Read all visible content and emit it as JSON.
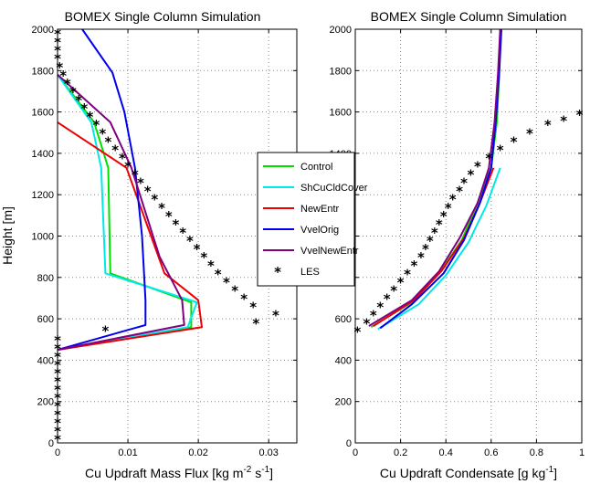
{
  "chart_data": [
    {
      "type": "line",
      "title": "BOMEX Single Column Simulation",
      "xlabel_parts": [
        "Cu Updraft Mass Flux [kg m",
        "-2",
        " s",
        "-1",
        "]"
      ],
      "ylabel": "Height [m]",
      "xlim": [
        0,
        0.034
      ],
      "ylim": [
        0,
        2000
      ],
      "xticks": [
        0,
        0.01,
        0.02,
        0.03
      ],
      "xtick_labels": [
        "0",
        "0.01",
        "0.02",
        "0.03"
      ],
      "yticks": [
        0,
        200,
        400,
        600,
        800,
        1000,
        1200,
        1400,
        1600,
        1800,
        2000
      ],
      "ytick_labels": [
        "0",
        "200",
        "400",
        "600",
        "800",
        "1000",
        "1200",
        "1400",
        "1600",
        "1800",
        "2000"
      ],
      "grid": true,
      "series": [
        {
          "name": "Control",
          "color": "#00e000",
          "points": [
            [
              0,
              450
            ],
            [
              0.019,
              560
            ],
            [
              0.019,
              680
            ],
            [
              0.0075,
              820
            ],
            [
              0.0072,
              1330
            ],
            [
              0.0052,
              1550
            ],
            [
              0,
              1780
            ]
          ]
        },
        {
          "name": "ShCuCldCover",
          "color": "#00e8e8",
          "points": [
            [
              0,
              450
            ],
            [
              0.0185,
              560
            ],
            [
              0.0198,
              680
            ],
            [
              0.0068,
              820
            ],
            [
              0.0062,
              1330
            ],
            [
              0.0048,
              1550
            ],
            [
              0,
              1780
            ]
          ]
        },
        {
          "name": "NewEntr",
          "color": "#ee0000",
          "points": [
            [
              0,
              450
            ],
            [
              0.0205,
              560
            ],
            [
              0.02,
              690
            ],
            [
              0.0152,
              820
            ],
            [
              0.0098,
              1330
            ],
            [
              0,
              1550
            ]
          ]
        },
        {
          "name": "VvelOrig",
          "color": "#0000ee",
          "points": [
            [
              0,
              450
            ],
            [
              0.0125,
              570
            ],
            [
              0.0125,
              690
            ],
            [
              0.012,
              1000
            ],
            [
              0.011,
              1330
            ],
            [
              0.0095,
              1600
            ],
            [
              0.0078,
              1790
            ],
            [
              0.0035,
              2000
            ]
          ]
        },
        {
          "name": "VvelNewEntr",
          "color": "#800080",
          "points": [
            [
              0,
              450
            ],
            [
              0.018,
              570
            ],
            [
              0.0177,
              690
            ],
            [
              0.0145,
              900
            ],
            [
              0.0105,
              1330
            ],
            [
              0.0075,
              1550
            ],
            [
              0,
              1780
            ]
          ]
        },
        {
          "name": "LES",
          "color": "#000000",
          "marker": "*",
          "points": [
            [
              0,
              20
            ],
            [
              0,
              60
            ],
            [
              0,
              100
            ],
            [
              0,
              140
            ],
            [
              0,
              180
            ],
            [
              0,
              220
            ],
            [
              0,
              260
            ],
            [
              0,
              300
            ],
            [
              0,
              340
            ],
            [
              0,
              380
            ],
            [
              0,
              420
            ],
            [
              0,
              460
            ],
            [
              0,
              500
            ],
            [
              0.0068,
              545
            ],
            [
              0.0282,
              580
            ],
            [
              0.031,
              620
            ],
            [
              0.0278,
              660
            ],
            [
              0.0265,
              700
            ],
            [
              0.0252,
              740
            ],
            [
              0.024,
              780
            ],
            [
              0.0228,
              820
            ],
            [
              0.0218,
              860
            ],
            [
              0.0208,
              900
            ],
            [
              0.0198,
              940
            ],
            [
              0.0188,
              980
            ],
            [
              0.0178,
              1020
            ],
            [
              0.0168,
              1060
            ],
            [
              0.0158,
              1100
            ],
            [
              0.0148,
              1140
            ],
            [
              0.0138,
              1180
            ],
            [
              0.0128,
              1220
            ],
            [
              0.0118,
              1260
            ],
            [
              0.011,
              1300
            ],
            [
              0.01,
              1340
            ],
            [
              0.0092,
              1380
            ],
            [
              0.0082,
              1420
            ],
            [
              0.0072,
              1460
            ],
            [
              0.0064,
              1500
            ],
            [
              0.0055,
              1540
            ],
            [
              0.0046,
              1580
            ],
            [
              0.0038,
              1620
            ],
            [
              0.003,
              1660
            ],
            [
              0.0022,
              1700
            ],
            [
              0.0014,
              1740
            ],
            [
              0.0008,
              1780
            ],
            [
              0.0003,
              1820
            ],
            [
              0,
              1860
            ],
            [
              0,
              1900
            ],
            [
              0,
              1940
            ],
            [
              0,
              1980
            ]
          ]
        }
      ]
    },
    {
      "type": "line",
      "title": "BOMEX Single Column Simulation",
      "xlabel_parts": [
        "Cu Updraft Condensate [g kg",
        "-1",
        "]"
      ],
      "ylabel": "",
      "xlim": [
        0,
        1
      ],
      "ylim": [
        0,
        2000
      ],
      "xticks": [
        0,
        0.2,
        0.4,
        0.6,
        0.8,
        1
      ],
      "xtick_labels": [
        "0",
        "0.2",
        "0.4",
        "0.6",
        "0.8",
        "1"
      ],
      "yticks": [
        0,
        200,
        400,
        600,
        800,
        1000,
        1200,
        1400,
        1600,
        1800,
        2000
      ],
      "ytick_labels": [
        "0",
        "200",
        "400",
        "600",
        "800",
        "1000",
        "1200",
        "1400",
        "1600",
        "1800",
        "2000"
      ],
      "grid": true,
      "series": [
        {
          "name": "Control",
          "color": "#00e000",
          "points": [
            [
              0.07,
              560
            ],
            [
              0.25,
              680
            ],
            [
              0.37,
              820
            ],
            [
              0.47,
              980
            ],
            [
              0.54,
              1160
            ],
            [
              0.6,
              1330
            ],
            [
              0.625,
              1550
            ],
            [
              0.635,
              1780
            ],
            [
              0.64,
              2000
            ]
          ]
        },
        {
          "name": "ShCuCldCover",
          "color": "#00e8e8",
          "points": [
            [
              0.1,
              550
            ],
            [
              0.28,
              670
            ],
            [
              0.4,
              810
            ],
            [
              0.5,
              970
            ],
            [
              0.58,
              1150
            ],
            [
              0.64,
              1330
            ]
          ]
        },
        {
          "name": "NewEntr",
          "color": "#ee0000",
          "points": [
            [
              0.08,
              565
            ],
            [
              0.26,
              690
            ],
            [
              0.38,
              830
            ],
            [
              0.48,
              990
            ],
            [
              0.55,
              1160
            ],
            [
              0.61,
              1330
            ]
          ]
        },
        {
          "name": "VvelOrig",
          "color": "#0000ee",
          "points": [
            [
              0.11,
              555
            ],
            [
              0.25,
              670
            ],
            [
              0.39,
              820
            ],
            [
              0.48,
              980
            ],
            [
              0.55,
              1160
            ],
            [
              0.6,
              1330
            ],
            [
              0.62,
              1550
            ],
            [
              0.635,
              1780
            ],
            [
              0.645,
              2000
            ]
          ]
        },
        {
          "name": "VvelNewEntr",
          "color": "#800080",
          "points": [
            [
              0.06,
              565
            ],
            [
              0.25,
              690
            ],
            [
              0.37,
              830
            ],
            [
              0.46,
              990
            ],
            [
              0.54,
              1160
            ],
            [
              0.59,
              1330
            ],
            [
              0.615,
              1550
            ],
            [
              0.63,
              1780
            ],
            [
              0.64,
              2000
            ]
          ]
        },
        {
          "name": "LES",
          "color": "#000000",
          "marker": "*",
          "points": [
            [
              0.01,
              540
            ],
            [
              0.05,
              580
            ],
            [
              0.08,
              620
            ],
            [
              0.11,
              660
            ],
            [
              0.14,
              700
            ],
            [
              0.17,
              740
            ],
            [
              0.2,
              780
            ],
            [
              0.23,
              820
            ],
            [
              0.26,
              860
            ],
            [
              0.29,
              900
            ],
            [
              0.31,
              940
            ],
            [
              0.33,
              980
            ],
            [
              0.35,
              1020
            ],
            [
              0.37,
              1060
            ],
            [
              0.39,
              1100
            ],
            [
              0.41,
              1140
            ],
            [
              0.43,
              1180
            ],
            [
              0.46,
              1220
            ],
            [
              0.48,
              1260
            ],
            [
              0.51,
              1300
            ],
            [
              0.54,
              1340
            ],
            [
              0.59,
              1380
            ],
            [
              0.64,
              1420
            ],
            [
              0.7,
              1460
            ],
            [
              0.77,
              1500
            ],
            [
              0.85,
              1540
            ],
            [
              0.92,
              1560
            ],
            [
              0.99,
              1590
            ]
          ]
        }
      ]
    }
  ]
}
